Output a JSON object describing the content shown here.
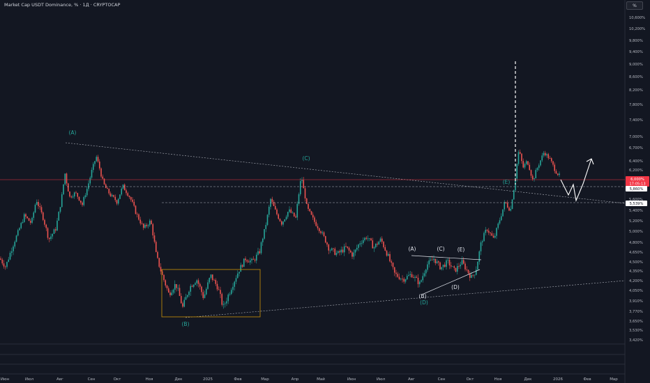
{
  "chart_data": {
    "type": "candlestick",
    "title": "Market Cap USDT Dominance, % · 1Д · CRYPTOCAP",
    "price_scale": {
      "unit_button": "%",
      "ticks": [
        "10,600%",
        "10,200%",
        "9,800%",
        "9,400%",
        "9,000%",
        "8,600%",
        "8,200%",
        "7,800%",
        "7,400%",
        "7,000%",
        "6,700%",
        "6,400%",
        "6,200%",
        "5,860%",
        "5,600%",
        "5,400%",
        "5,200%",
        "5,000%",
        "4,800%",
        "4,650%",
        "4,500%",
        "4,350%",
        "4,200%",
        "4,050%",
        "3,910%",
        "3,770%",
        "3,650%",
        "3,530%",
        "3,420%"
      ]
    },
    "time_scale": {
      "ticks": [
        "Июн",
        "Июл",
        "Авг",
        "Сен",
        "Окт",
        "Ноя",
        "Дек",
        "2025",
        "Фев",
        "Мар",
        "Апр",
        "Май",
        "Июн",
        "Июл",
        "Авг",
        "Сен",
        "Окт",
        "Ноя",
        "Дек",
        "2026",
        "Фев",
        "Мар"
      ]
    },
    "current_price": {
      "value": "6,000%",
      "countdown": "17:05:13"
    },
    "level_badges": [
      {
        "value": "5,860%"
      },
      {
        "value": "5,539%"
      }
    ],
    "wave_labels_major": [
      "(A)",
      "(B)",
      "(C)",
      "(D)",
      "(E)"
    ],
    "wave_labels_minor": [
      "(A)",
      "(B)",
      "(C)",
      "(D)",
      "(E)"
    ],
    "colors": {
      "background": "#131722",
      "up": "#26a69a",
      "down": "#ef5350",
      "text": "#b2b5be",
      "current": "#f23645",
      "projection": "#ffffff"
    },
    "series": [
      {
        "kind": "ohlc",
        "range": [
          3.6,
          7.0
        ],
        "peak_wick": 9.0
      }
    ]
  }
}
